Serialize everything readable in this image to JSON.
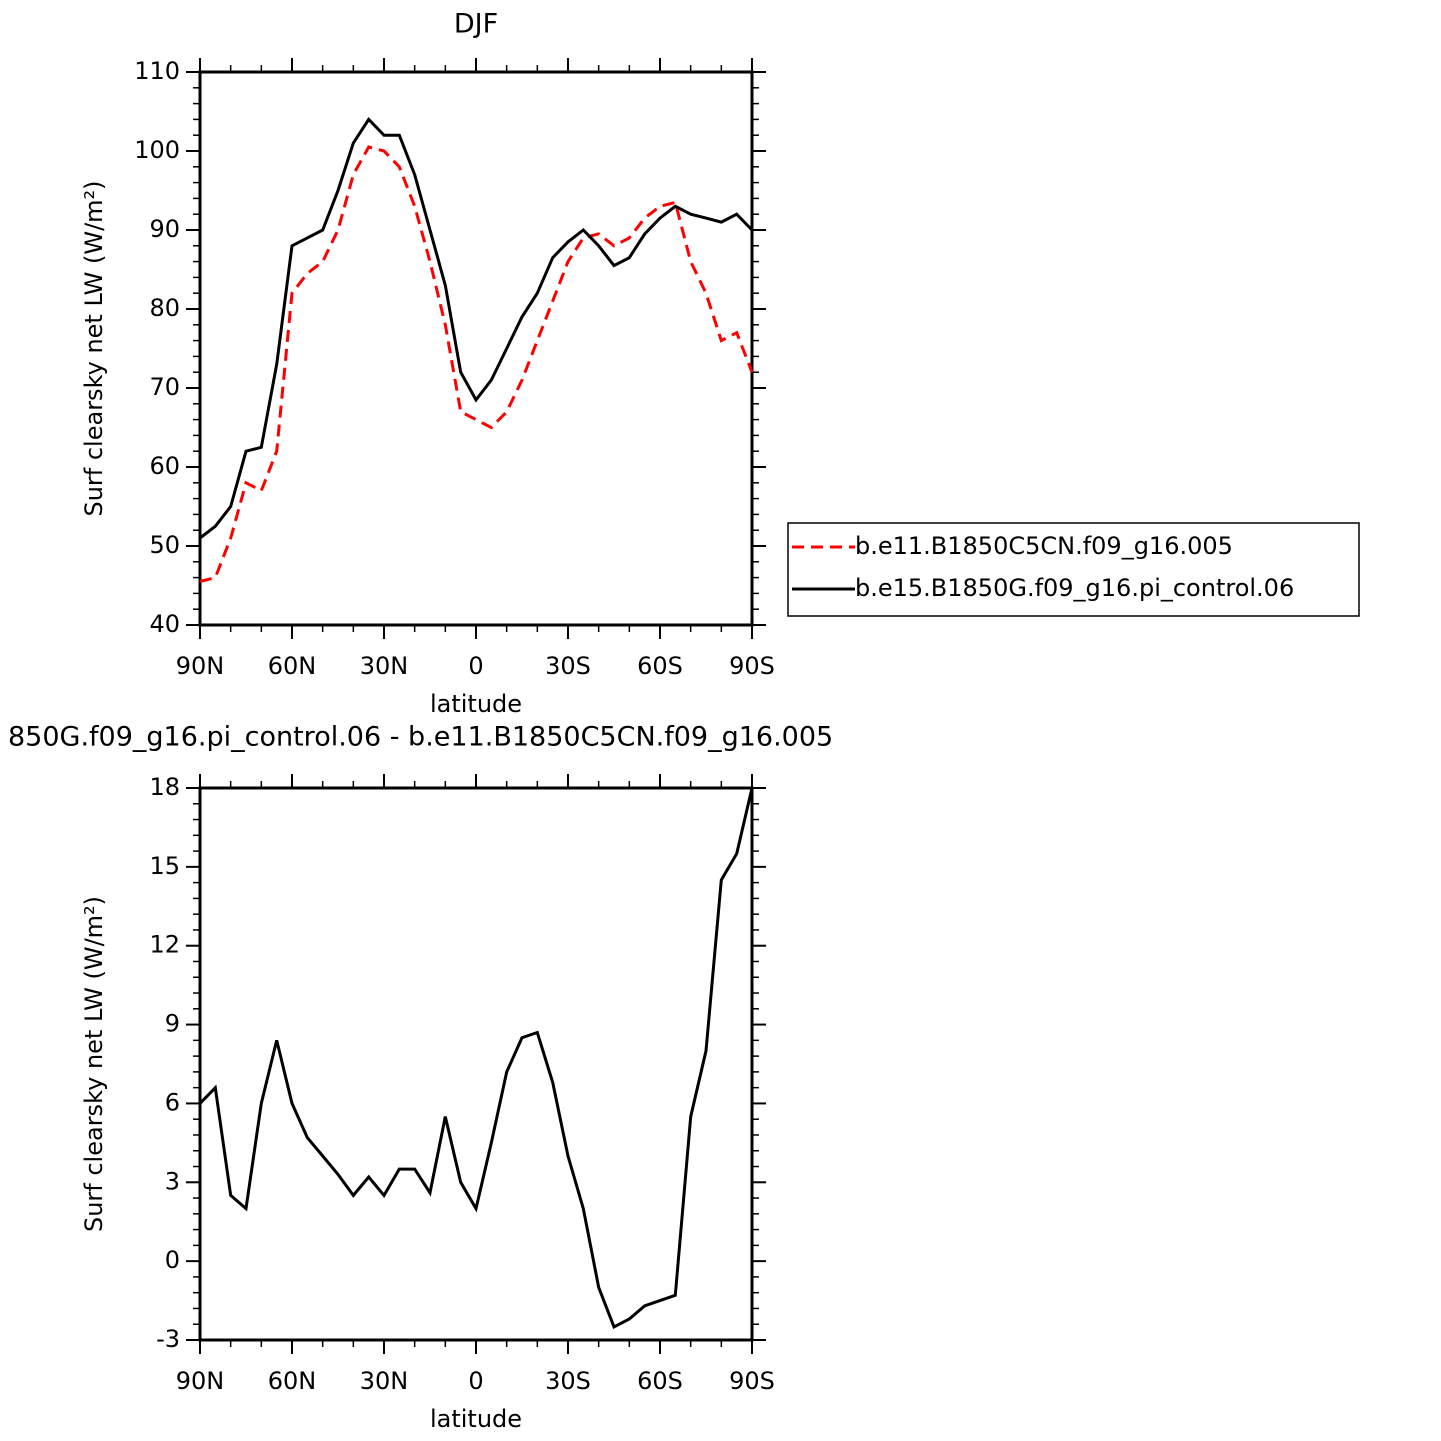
{
  "chart_data": [
    {
      "type": "line",
      "title": "DJF",
      "xlabel": "latitude",
      "ylabel": "Surf clearsky net LW (W/m²)",
      "x": [
        90,
        85,
        80,
        75,
        70,
        65,
        60,
        55,
        50,
        45,
        40,
        35,
        30,
        25,
        20,
        15,
        10,
        5,
        0,
        -5,
        -10,
        -15,
        -20,
        -25,
        -30,
        -35,
        -40,
        -45,
        -50,
        -55,
        -60,
        -65,
        -70,
        -75,
        -80,
        -85,
        -90
      ],
      "xlim": [
        90,
        -90
      ],
      "xticks": [
        {
          "value": 90,
          "label": "90N"
        },
        {
          "value": 60,
          "label": "60N"
        },
        {
          "value": 30,
          "label": "30N"
        },
        0,
        {
          "value": -30,
          "label": "30S"
        },
        {
          "value": -60,
          "label": "60S"
        },
        {
          "value": -90,
          "label": "90S"
        }
      ],
      "ylim": [
        40,
        110
      ],
      "yticks": [
        40,
        50,
        60,
        70,
        80,
        90,
        100,
        110
      ],
      "legend": "right",
      "series": [
        {
          "name": "b.e11.B1850C5CN.f09_g16.005",
          "color": "#ff0000",
          "dashed": true,
          "values": [
            45.5,
            46,
            51,
            58,
            57,
            62,
            82,
            84.5,
            86,
            90,
            97,
            100.5,
            100,
            98,
            93,
            86,
            78,
            67,
            66,
            65,
            67,
            71,
            76,
            81,
            86,
            89,
            89.5,
            88,
            89,
            91.5,
            93,
            93.5,
            86,
            82,
            76,
            77,
            72
          ]
        },
        {
          "name": "b.e15.B1850G.f09_g16.pi_control.06",
          "color": "#000000",
          "dashed": false,
          "values": [
            51,
            52.5,
            55,
            62,
            62.5,
            73,
            88,
            89,
            90,
            95,
            101,
            104,
            102,
            102,
            97,
            90,
            83,
            72,
            68.5,
            71,
            75,
            79,
            82,
            86.5,
            88.5,
            90,
            88,
            85.5,
            86.5,
            89.5,
            91.5,
            93,
            92,
            91.5,
            91,
            92,
            90
          ]
        }
      ]
    },
    {
      "type": "line",
      "title": "850G.f09_g16.pi_control.06 - b.e11.B1850C5CN.f09_g16.005",
      "xlabel": "latitude",
      "ylabel": "Surf clearsky net LW (W/m²)",
      "x": [
        90,
        85,
        80,
        75,
        70,
        65,
        60,
        55,
        50,
        45,
        40,
        35,
        30,
        25,
        20,
        15,
        10,
        5,
        0,
        -5,
        -10,
        -15,
        -20,
        -25,
        -30,
        -35,
        -40,
        -45,
        -50,
        -55,
        -60,
        -65,
        -70,
        -75,
        -80,
        -85,
        -90
      ],
      "xlim": [
        90,
        -90
      ],
      "xticks": [
        {
          "value": 90,
          "label": "90N"
        },
        {
          "value": 60,
          "label": "60N"
        },
        {
          "value": 30,
          "label": "30N"
        },
        0,
        {
          "value": -30,
          "label": "30S"
        },
        {
          "value": -60,
          "label": "60S"
        },
        {
          "value": -90,
          "label": "90S"
        }
      ],
      "ylim": [
        -3,
        18
      ],
      "yticks": [
        -3,
        0,
        3,
        6,
        9,
        12,
        15,
        18
      ],
      "color": "#000000",
      "values": [
        6,
        6.6,
        2.5,
        2,
        6,
        8.4,
        6,
        4.7,
        4,
        3.3,
        2.5,
        3.2,
        2.5,
        3.5,
        3.5,
        2.6,
        5.5,
        3,
        2,
        4.5,
        7.2,
        8.5,
        8.7,
        6.8,
        4,
        2,
        -1,
        -2.5,
        -2.2,
        -1.7,
        -1.5,
        -1.3,
        5.5,
        8,
        14.5,
        15.5,
        18
      ]
    }
  ]
}
